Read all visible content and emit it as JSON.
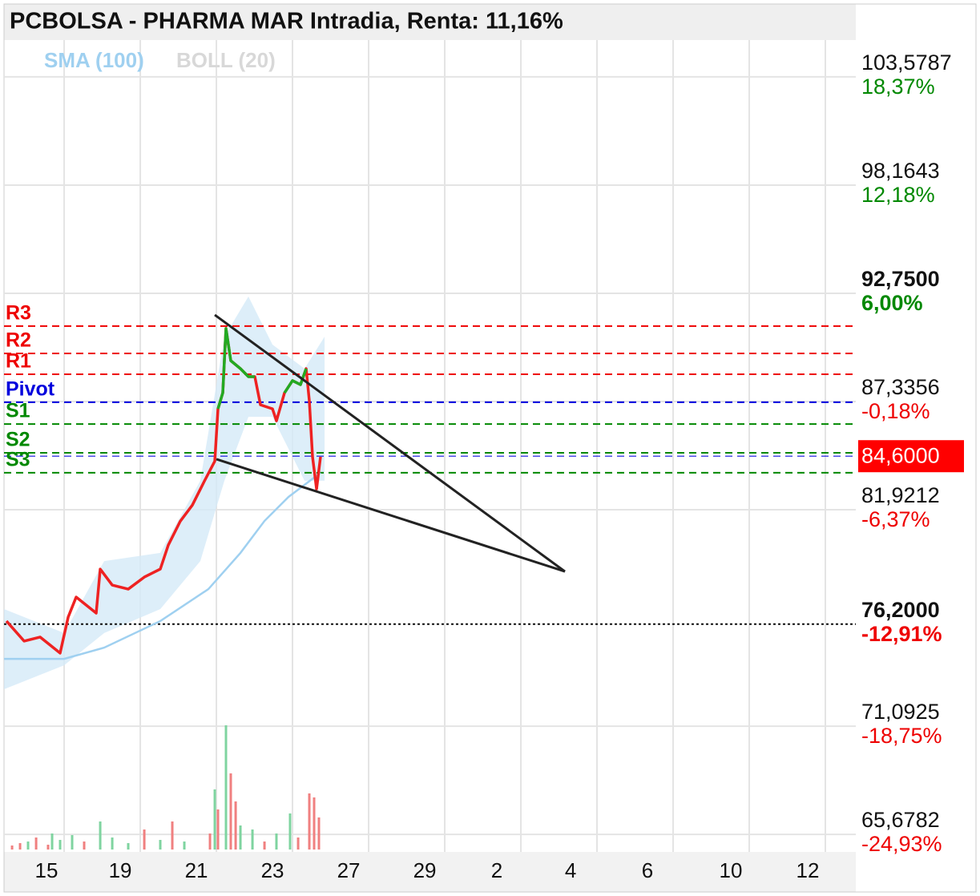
{
  "chart_data": {
    "type": "line",
    "title": "PCBOLSA - PHARMA MAR Intradia, Renta: 11,16%",
    "legend": [
      {
        "name": "SMA (100)",
        "color": "#9fd0f0"
      },
      {
        "name": "BOLL (20)",
        "color": "#d8d8d8"
      }
    ],
    "xlim": [
      -0.79,
      10.4
    ],
    "ylim": [
      64.8,
      105.42
    ],
    "xgrid": [
      0,
      1,
      2,
      3,
      4,
      5,
      6,
      7,
      8,
      9,
      10
    ],
    "xticks": [
      {
        "value": -0.232,
        "label": "15"
      },
      {
        "value": 0.737,
        "label": "19"
      },
      {
        "value": 1.737,
        "label": "21"
      },
      {
        "value": 2.737,
        "label": "23"
      },
      {
        "value": 3.737,
        "label": "27"
      },
      {
        "value": 4.737,
        "label": "29"
      },
      {
        "value": 5.684,
        "label": "2"
      },
      {
        "value": 6.653,
        "label": "4"
      },
      {
        "value": 7.663,
        "label": "6"
      },
      {
        "value": 8.758,
        "label": "10"
      },
      {
        "value": 9.768,
        "label": "12"
      }
    ],
    "yticks": [
      {
        "value": 103.5787,
        "label": "103,5787"
      },
      {
        "value": 98.1643,
        "label": "98,1643"
      },
      {
        "value": 92.75,
        "label": "92,7500"
      },
      {
        "value": 87.3356,
        "label": "87,3356"
      },
      {
        "value": 81.9212,
        "label": "81,9212"
      },
      {
        "value": 71.0925,
        "label": "71,0925"
      },
      {
        "value": 65.6782,
        "label": "65,6782"
      }
    ],
    "ytick_changes": [
      "18,37%",
      "12,18%",
      "6,00%",
      "-0,18%",
      "-6,37%",
      "-18,75%",
      "-24,93%"
    ],
    "ytick_bold": [
      false,
      false,
      true,
      false,
      false,
      false,
      false
    ],
    "grid": true,
    "reference_line": {
      "value": 76.2,
      "label": "76,2000",
      "change_label": "-12,91%"
    },
    "last_price": {
      "value": 84.6,
      "label": "84,6000",
      "color": "#ff0000"
    },
    "pivots": [
      {
        "name": "R3",
        "value": 91.11,
        "color": "#ee0000"
      },
      {
        "name": "R2",
        "value": 89.74,
        "color": "#ee0000"
      },
      {
        "name": "R1",
        "value": 88.7,
        "color": "#ee0000"
      },
      {
        "name": "Pivot",
        "value": 87.3,
        "color": "#0000dd"
      },
      {
        "name": "S1",
        "value": 86.21,
        "color": "#008800"
      },
      {
        "name": "S2",
        "value": 84.77,
        "color": "#008800"
      },
      {
        "name": "S3",
        "value": 83.77,
        "color": "#008800"
      }
    ],
    "x": [
      -0.758,
      -0.526,
      -0.316,
      -0.053,
      0.053,
      0.158,
      0.421,
      0.474,
      0.632,
      0.842,
      1.053,
      1.263,
      1.368,
      1.526,
      1.684,
      1.842,
      1.979,
      2.021,
      2.084,
      2.126,
      2.189,
      2.316,
      2.421,
      2.505,
      2.579,
      2.737,
      2.789,
      2.895,
      3.0,
      3.105,
      3.179,
      3.221,
      3.263,
      3.316,
      3.368
    ],
    "series": [
      {
        "color": "#ee2222",
        "values": [
          76.35,
          75.35,
          75.55,
          74.75,
          76.55,
          77.55,
          76.75,
          78.95,
          78.15,
          77.95,
          78.55,
          78.95,
          80.15,
          81.35,
          82.15,
          83.35,
          84.35,
          86.97,
          87.77,
          90.99,
          89.38,
          88.98,
          88.58,
          88.58,
          87.17,
          86.97,
          86.37,
          87.77,
          88.38,
          88.18,
          88.98,
          87.37,
          84.57,
          82.96,
          84.57
        ]
      },
      {
        "color": "#22aa22",
        "values": [
          null,
          null,
          null,
          null,
          null,
          null,
          null,
          null,
          null,
          null,
          null,
          null,
          null,
          null,
          null,
          null,
          null,
          86.97,
          87.77,
          90.99,
          89.38,
          88.98,
          88.58,
          88.58,
          null,
          null,
          null,
          87.77,
          88.38,
          88.18,
          88.98,
          null,
          null,
          null,
          null
        ]
      }
    ],
    "sma": {
      "x": [
        -0.789,
        0.0,
        0.526,
        1.263,
        1.895,
        2.316,
        2.632,
        2.947,
        3.368
      ],
      "values": [
        74.46,
        74.46,
        75.02,
        76.35,
        77.95,
        79.76,
        81.36,
        82.56,
        83.77
      ]
    },
    "bollinger": {
      "x": [
        -0.789,
        0.0,
        0.526,
        1.263,
        1.789,
        2.105,
        2.421,
        2.737,
        3.158,
        3.421
      ],
      "upper": [
        76.95,
        75.75,
        79.35,
        79.76,
        83.37,
        90.58,
        92.59,
        90.18,
        88.98,
        90.58
      ],
      "lower": [
        72.94,
        74.14,
        75.75,
        76.95,
        79.35,
        83.37,
        86.57,
        86.57,
        83.37,
        83.37
      ]
    },
    "trendlines": [
      {
        "x": [
          1.979,
          6.579
        ],
        "values": [
          91.67,
          78.83
        ]
      },
      {
        "x": [
          2.0,
          6.579
        ],
        "values": [
          84.45,
          78.83
        ]
      }
    ],
    "volume": {
      "ylim": [
        0,
        160
      ],
      "x": [
        -0.684,
        -0.579,
        -0.474,
        -0.368,
        -0.211,
        -0.158,
        -0.053,
        0.105,
        0.263,
        0.474,
        0.632,
        0.842,
        1.053,
        1.263,
        1.421,
        1.579,
        1.916,
        1.979,
        2.021,
        2.126,
        2.189,
        2.253,
        2.316,
        2.474,
        2.632,
        2.789,
        2.968,
        3.074,
        3.221,
        3.284,
        3.347
      ],
      "values": [
        5,
        8,
        10,
        15,
        6,
        20,
        12,
        18,
        10,
        35,
        15,
        8,
        25,
        12,
        35,
        10,
        20,
        75,
        50,
        155,
        95,
        60,
        30,
        25,
        10,
        20,
        45,
        15,
        70,
        65,
        40
      ],
      "colors": [
        "#f08080",
        "#f08080",
        "#7fd4a0",
        "#f08080",
        "#f08080",
        "#7fd4a0",
        "#7fd4a0",
        "#7fd4a0",
        "#f08080",
        "#7fd4a0",
        "#7fd4a0",
        "#7fd4a0",
        "#f08080",
        "#7fd4a0",
        "#f08080",
        "#7fd4a0",
        "#f08080",
        "#7fd4a0",
        "#f08080",
        "#7fd4a0",
        "#f08080",
        "#f08080",
        "#7fd4a0",
        "#7fd4a0",
        "#f08080",
        "#7fd4a0",
        "#7fd4a0",
        "#f08080",
        "#f08080",
        "#f08080",
        "#f08080"
      ]
    }
  }
}
